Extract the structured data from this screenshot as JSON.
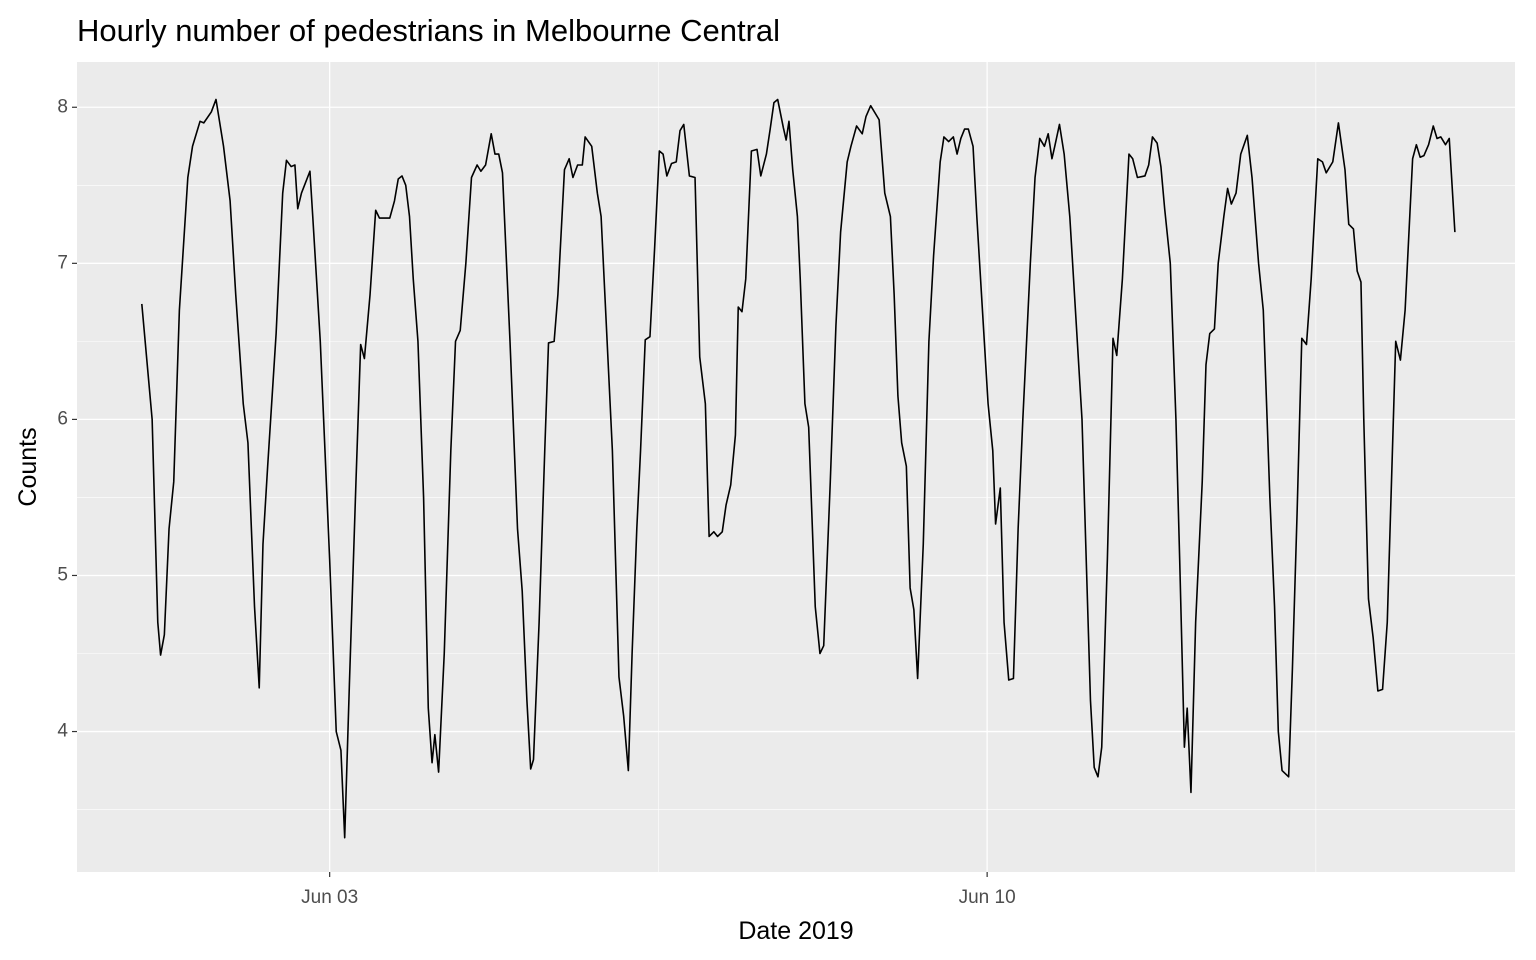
{
  "chart_data": {
    "type": "line",
    "title": "Hourly number of pedestrians in Melbourne Central",
    "x_label": "Date 2019",
    "y_label": "Counts",
    "color": "#000000",
    "grid": true,
    "xlim": [
      0.31,
      15.62
    ],
    "xticks": [
      {
        "value": 3,
        "label": "Jun 03"
      },
      {
        "value": 10,
        "label": "Jun 10"
      }
    ],
    "x_minor_ticks": [
      6.5,
      13.5
    ],
    "ylim": [
      3.1,
      8.29
    ],
    "yticks": [
      4,
      5,
      6,
      7,
      8
    ],
    "y_minor_ticks": [
      3.5,
      4.5,
      5.5,
      6.5,
      7.5
    ],
    "x": [
      1.0,
      1.11,
      1.17,
      1.2,
      1.24,
      1.29,
      1.34,
      1.4,
      1.49,
      1.54,
      1.62,
      1.66,
      1.74,
      1.79,
      1.87,
      1.94,
      2.0,
      2.08,
      2.13,
      2.2,
      2.25,
      2.29,
      2.34,
      2.43,
      2.5,
      2.54,
      2.59,
      2.63,
      2.66,
      2.7,
      2.79,
      2.82,
      2.9,
      3.0,
      3.07,
      3.12,
      3.16,
      3.21,
      3.28,
      3.33,
      3.37,
      3.43,
      3.49,
      3.53,
      3.64,
      3.69,
      3.73,
      3.77,
      3.81,
      3.85,
      3.89,
      3.94,
      4.0,
      4.05,
      4.09,
      4.12,
      4.16,
      4.22,
      4.29,
      4.34,
      4.39,
      4.45,
      4.51,
      4.57,
      4.61,
      4.66,
      4.72,
      4.76,
      4.8,
      4.84,
      4.92,
      5.0,
      5.05,
      5.1,
      5.14,
      5.17,
      5.23,
      5.29,
      5.33,
      5.39,
      5.43,
      5.5,
      5.55,
      5.59,
      5.64,
      5.69,
      5.72,
      5.79,
      5.85,
      5.89,
      5.93,
      6.01,
      6.08,
      6.13,
      6.18,
      6.22,
      6.27,
      6.31,
      6.36,
      6.41,
      6.46,
      6.51,
      6.55,
      6.59,
      6.64,
      6.69,
      6.73,
      6.77,
      6.83,
      6.89,
      6.94,
      7.0,
      7.04,
      7.09,
      7.13,
      7.18,
      7.22,
      7.27,
      7.32,
      7.35,
      7.39,
      7.43,
      7.49,
      7.55,
      7.59,
      7.65,
      7.69,
      7.73,
      7.77,
      7.83,
      7.86,
      7.89,
      7.93,
      7.98,
      8.01,
      8.06,
      8.1,
      8.17,
      8.22,
      8.26,
      8.33,
      8.39,
      8.44,
      8.51,
      8.55,
      8.61,
      8.67,
      8.71,
      8.76,
      8.85,
      8.91,
      8.97,
      9.01,
      9.05,
      9.09,
      9.14,
      9.18,
      9.22,
      9.26,
      9.32,
      9.38,
      9.43,
      9.5,
      9.54,
      9.59,
      9.64,
      9.68,
      9.72,
      9.76,
      9.8,
      9.85,
      9.89,
      9.93,
      10.01,
      10.06,
      10.09,
      10.14,
      10.18,
      10.23,
      10.28,
      10.33,
      10.38,
      10.46,
      10.51,
      10.56,
      10.61,
      10.65,
      10.69,
      10.72,
      10.77,
      10.82,
      10.88,
      10.95,
      11.01,
      11.05,
      11.1,
      11.14,
      11.18,
      11.22,
      11.28,
      11.34,
      11.38,
      11.44,
      11.51,
      11.55,
      11.6,
      11.68,
      11.72,
      11.76,
      11.81,
      11.85,
      11.89,
      11.95,
      12.01,
      12.05,
      12.1,
      12.13,
      12.17,
      12.22,
      12.29,
      12.33,
      12.37,
      12.42,
      12.46,
      12.52,
      12.56,
      12.6,
      12.65,
      12.7,
      12.77,
      12.82,
      12.89,
      12.94,
      13.01,
      13.06,
      13.1,
      13.14,
      13.21,
      13.25,
      13.3,
      13.35,
      13.4,
      13.45,
      13.52,
      13.57,
      13.61,
      13.68,
      13.74,
      13.81,
      13.85,
      13.9,
      13.94,
      13.98,
      14.01,
      14.06,
      14.11,
      14.16,
      14.21,
      14.26,
      14.3,
      14.35,
      14.4,
      14.45,
      14.53,
      14.57,
      14.61,
      14.65,
      14.7,
      14.75,
      14.79,
      14.83,
      14.88,
      14.92,
      14.98
    ],
    "values": [
      6.74,
      6.0,
      4.7,
      4.49,
      4.62,
      5.3,
      5.6,
      6.7,
      7.55,
      7.75,
      7.91,
      7.9,
      7.97,
      8.05,
      7.75,
      7.4,
      6.8,
      6.1,
      5.85,
      4.8,
      4.28,
      5.2,
      5.7,
      6.55,
      7.45,
      7.66,
      7.62,
      7.63,
      7.35,
      7.45,
      7.59,
      7.3,
      6.5,
      5.1,
      4.0,
      3.88,
      3.32,
      4.3,
      5.6,
      6.48,
      6.39,
      6.8,
      7.34,
      7.29,
      7.29,
      7.4,
      7.54,
      7.56,
      7.5,
      7.3,
      6.9,
      6.5,
      5.5,
      4.15,
      3.8,
      3.98,
      3.74,
      4.5,
      5.8,
      6.5,
      6.57,
      7.0,
      7.55,
      7.63,
      7.59,
      7.63,
      7.83,
      7.7,
      7.7,
      7.58,
      6.5,
      5.3,
      4.9,
      4.2,
      3.76,
      3.82,
      4.7,
      5.8,
      6.49,
      6.5,
      6.8,
      7.6,
      7.67,
      7.55,
      7.63,
      7.63,
      7.81,
      7.75,
      7.45,
      7.3,
      6.8,
      5.8,
      4.35,
      4.1,
      3.75,
      4.5,
      5.3,
      5.8,
      6.51,
      6.53,
      7.1,
      7.72,
      7.7,
      7.56,
      7.64,
      7.65,
      7.85,
      7.89,
      7.56,
      7.55,
      6.4,
      6.1,
      5.25,
      5.28,
      5.25,
      5.28,
      5.45,
      5.58,
      5.9,
      6.72,
      6.69,
      6.9,
      7.72,
      7.73,
      7.56,
      7.7,
      7.86,
      8.03,
      8.05,
      7.87,
      7.79,
      7.91,
      7.6,
      7.3,
      6.9,
      6.1,
      5.95,
      4.8,
      4.5,
      4.55,
      5.6,
      6.6,
      7.2,
      7.65,
      7.75,
      7.88,
      7.83,
      7.94,
      8.01,
      7.92,
      7.45,
      7.3,
      6.8,
      6.15,
      5.85,
      5.7,
      4.92,
      4.78,
      4.34,
      5.2,
      6.5,
      7.05,
      7.65,
      7.81,
      7.78,
      7.81,
      7.7,
      7.8,
      7.86,
      7.86,
      7.75,
      7.3,
      6.9,
      6.1,
      5.8,
      5.33,
      5.56,
      4.7,
      4.33,
      4.34,
      5.3,
      6.0,
      7.0,
      7.55,
      7.8,
      7.75,
      7.83,
      7.67,
      7.75,
      7.89,
      7.7,
      7.3,
      6.6,
      6.0,
      5.2,
      4.2,
      3.77,
      3.71,
      3.9,
      5.1,
      6.52,
      6.41,
      6.9,
      7.7,
      7.67,
      7.55,
      7.56,
      7.63,
      7.81,
      7.77,
      7.62,
      7.35,
      7.0,
      6.0,
      5.1,
      3.9,
      4.15,
      3.61,
      4.7,
      5.6,
      6.35,
      6.55,
      6.58,
      7.0,
      7.3,
      7.48,
      7.38,
      7.45,
      7.7,
      7.82,
      7.55,
      7.0,
      6.7,
      5.5,
      4.8,
      4.0,
      3.75,
      3.71,
      4.4,
      5.4,
      6.52,
      6.48,
      6.9,
      7.67,
      7.65,
      7.58,
      7.65,
      7.9,
      7.6,
      7.25,
      7.22,
      6.95,
      6.88,
      6.0,
      4.85,
      4.6,
      4.26,
      4.27,
      4.7,
      5.5,
      6.5,
      6.38,
      6.7,
      7.67,
      7.76,
      7.68,
      7.69,
      7.76,
      7.88,
      7.8,
      7.81,
      7.76,
      7.8,
      7.2
    ]
  }
}
